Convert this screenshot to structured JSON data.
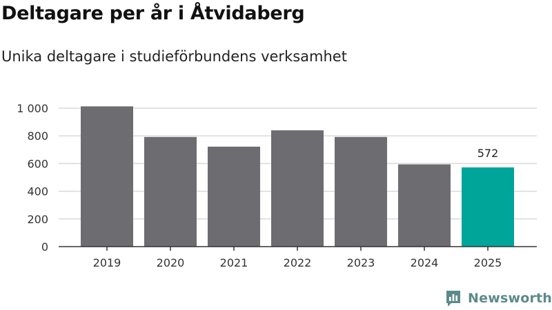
{
  "title": "Deltagare per år i Åtvidaberg",
  "subtitle": "Unika deltagare i studieförbundens verksamhet",
  "brand": "Newsworthy",
  "colors": {
    "bar": "#6d6c71",
    "highlight": "#00a59a",
    "grid": "#d9d9d9",
    "axis": "#333333",
    "brand": "#5c8a8a"
  },
  "chart_data": {
    "type": "bar",
    "categories": [
      "2019",
      "2020",
      "2021",
      "2022",
      "2023",
      "2024",
      "2025"
    ],
    "values": [
      1013,
      792,
      722,
      840,
      792,
      594,
      572
    ],
    "highlight_index": 6,
    "data_labels": [
      {
        "index": 6,
        "text": "572"
      }
    ],
    "yticks": [
      {
        "value": 0,
        "label": "0"
      },
      {
        "value": 200,
        "label": "200"
      },
      {
        "value": 400,
        "label": "400"
      },
      {
        "value": 600,
        "label": "600"
      },
      {
        "value": 800,
        "label": "800"
      },
      {
        "value": 1000,
        "label": "1 000"
      }
    ],
    "ylim": [
      0,
      1000
    ],
    "grid": true,
    "xlabel": "",
    "ylabel": ""
  }
}
